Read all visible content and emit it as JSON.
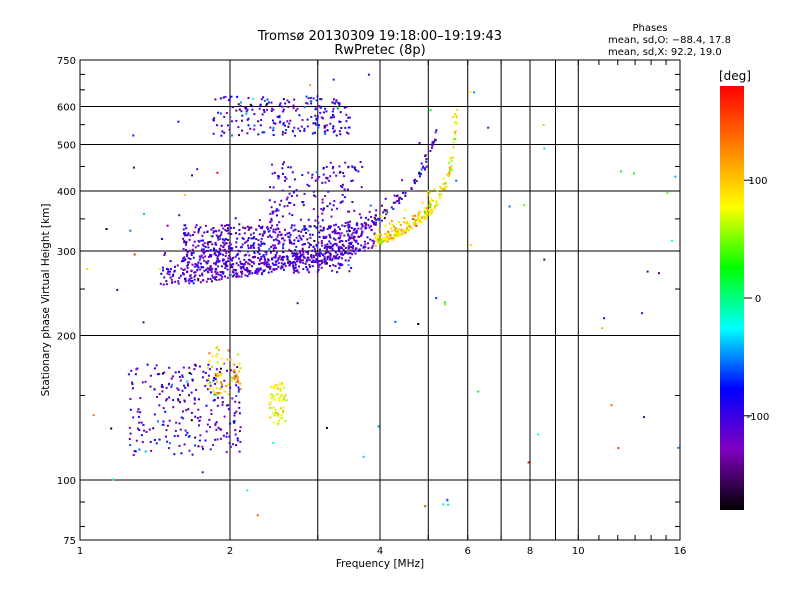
{
  "chart_data": {
    "type": "scatter",
    "title": "Tromsø 20130309 19:18:00–19:19:43",
    "subtitle": "RwPretec (8p)",
    "xlabel": "Frequency [MHz]",
    "ylabel": "Stationary phase Virtual Height [km]",
    "x_scale": "log",
    "y_scale": "log",
    "xlim": [
      1,
      16
    ],
    "ylim": [
      75,
      750
    ],
    "x_ticks": [
      1,
      2,
      4,
      6,
      8,
      10,
      16
    ],
    "x_minor_ticks": [
      3,
      5,
      7,
      9
    ],
    "y_ticks": [
      75,
      100,
      200,
      300,
      400,
      500,
      600,
      750
    ],
    "grid": true,
    "phase_info": {
      "title": "Phases",
      "line_o": "mean, sd,O: −88.4, 17.8",
      "line_x": "mean, sd,X:  92.2, 19.0"
    },
    "colorbar": {
      "label": "[deg]",
      "range": [
        -180,
        180
      ],
      "ticks": [
        100,
        0,
        -100
      ],
      "colors": [
        "#ff0000",
        "#ff8000",
        "#ffff00",
        "#00ff00",
        "#00ffff",
        "#0000ff",
        "#8000c0",
        "#000000"
      ]
    },
    "echo_regions": [
      {
        "kind": "trace",
        "x": [
          1.45,
          1.6,
          1.8,
          2.0,
          2.3,
          2.7,
          3.2,
          3.6,
          3.9
        ],
        "y": [
          255,
          256,
          258,
          262,
          268,
          276,
          288,
          297,
          305
        ],
        "spread": 0.055,
        "n": 460,
        "phase": [
          -115,
          20
        ]
      },
      {
        "kind": "trace",
        "x": [
          3.9,
          4.3,
          4.7,
          5.1,
          5.4,
          5.6,
          5.7
        ],
        "y": [
          305,
          318,
          335,
          360,
          400,
          460,
          580
        ],
        "spread": 0.03,
        "n": 240,
        "phase": [
          90,
          25
        ]
      },
      {
        "kind": "trace",
        "x": [
          3.5,
          4.0,
          4.5,
          4.9,
          5.2
        ],
        "y": [
          318,
          345,
          385,
          440,
          520
        ],
        "spread": 0.03,
        "n": 110,
        "phase": [
          -110,
          25
        ]
      },
      {
        "kind": "blob",
        "x": [
          1.6,
          3.5
        ],
        "y": [
          270,
          340
        ],
        "n": 600,
        "phase": [
          -110,
          22
        ]
      },
      {
        "kind": "blob",
        "x": [
          2.4,
          3.7
        ],
        "y": [
          330,
          460
        ],
        "n": 150,
        "phase": [
          -110,
          22
        ]
      },
      {
        "kind": "blob",
        "x": [
          1.85,
          3.5
        ],
        "y": [
          520,
          630
        ],
        "n": 220,
        "phase": [
          -105,
          28
        ]
      },
      {
        "kind": "blob",
        "x": [
          1.25,
          2.1
        ],
        "y": [
          112,
          175
        ],
        "n": 260,
        "phase": [
          -110,
          25
        ]
      },
      {
        "kind": "blob",
        "x": [
          1.8,
          2.1
        ],
        "y": [
          150,
          190
        ],
        "n": 70,
        "phase": [
          95,
          25
        ]
      },
      {
        "kind": "blob",
        "x": [
          2.4,
          2.6
        ],
        "y": [
          130,
          160
        ],
        "n": 60,
        "phase": [
          75,
          15
        ]
      },
      {
        "kind": "blob",
        "x": [
          1.0,
          16.0
        ],
        "y": [
          78,
          700
        ],
        "n": 75,
        "phase": [
          -40,
          110
        ]
      }
    ]
  }
}
